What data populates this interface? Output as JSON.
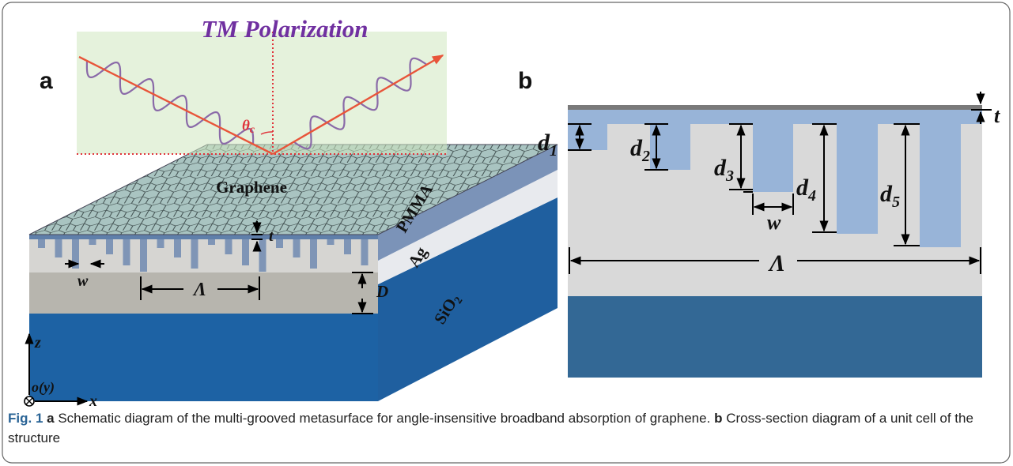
{
  "panel_a": {
    "letter": "a",
    "title": "TM Polarization",
    "angle": {
      "base": "θ",
      "sub": "c"
    },
    "graphene": "Graphene",
    "pmma": "PMMA",
    "ag": "Ag",
    "sio2": {
      "base": "SiO",
      "sub": "2"
    },
    "t": "t",
    "w": "w",
    "period": "Λ",
    "D": "D",
    "z": "z",
    "origin": "o(y)",
    "x": "x"
  },
  "panel_b": {
    "letter": "b",
    "t": "t",
    "depths": [
      {
        "base": "d",
        "sub": "1"
      },
      {
        "base": "d",
        "sub": "2"
      },
      {
        "base": "d",
        "sub": "3"
      },
      {
        "base": "d",
        "sub": "4"
      },
      {
        "base": "d",
        "sub": "5"
      }
    ],
    "w": "w",
    "period": "Λ"
  },
  "caption": {
    "fig": "Fig. 1",
    "a": "a",
    "a_text": "Schematic diagram of the multi-grooved metasurface for angle-insensitive broadband absorption of graphene.",
    "b": "b",
    "b_text": "Cross-section diagram of a unit cell of the structure"
  }
}
